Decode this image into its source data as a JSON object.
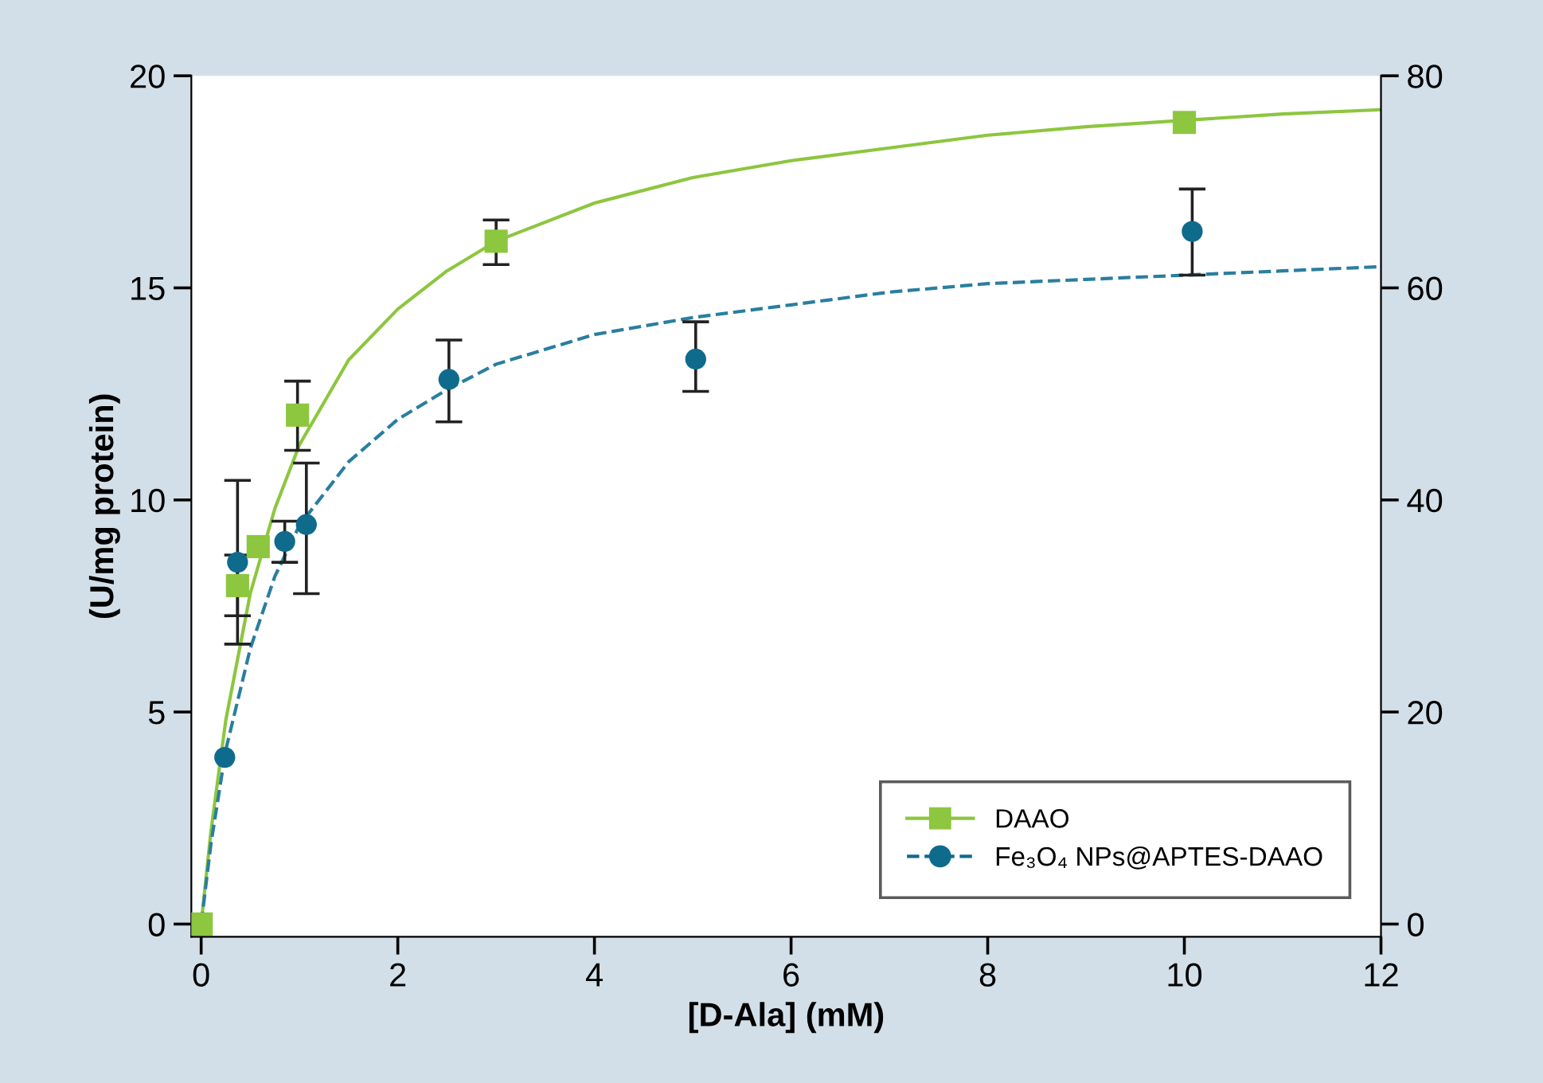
{
  "chart_data": {
    "type": "scatter",
    "xlabel": "[D-Ala] (mM)",
    "ylabel": "(U/mg protein)",
    "xlim": [
      -0.1,
      12
    ],
    "xticks": [
      0,
      2,
      4,
      6,
      8,
      10,
      12
    ],
    "ylim": [
      -0.3,
      20
    ],
    "yticks": [
      0,
      5,
      10,
      15,
      20
    ],
    "y2lim": [
      -1.2,
      80
    ],
    "y2ticks": [
      0,
      20,
      40,
      60,
      80
    ],
    "grid": false,
    "legend": "bottom right",
    "series": [
      {
        "name": "DAAO",
        "marker": "square",
        "color": "#8dc63f",
        "x": [
          0,
          0.37,
          0.58,
          0.98,
          3.0,
          10.0
        ],
        "values": [
          0,
          7.98,
          8.9,
          12.0,
          16.1,
          18.9
        ],
        "errors": [
          null,
          [
            7.27,
            8.7
          ],
          null,
          [
            11.17,
            12.8
          ],
          [
            15.55,
            16.6
          ],
          null
        ]
      },
      {
        "type": "line",
        "line_style": "solid",
        "color": "#8dc63f",
        "x": [
          0,
          0.1,
          0.25,
          0.5,
          0.75,
          1,
          1.5,
          2,
          2.5,
          3,
          4,
          5,
          6,
          7,
          8,
          9,
          10,
          11,
          12
        ],
        "values": [
          0,
          2.2,
          4.8,
          7.8,
          9.8,
          11.3,
          13.3,
          14.5,
          15.4,
          16.1,
          17.0,
          17.6,
          18.0,
          18.3,
          18.6,
          18.8,
          18.95,
          19.1,
          19.2
        ]
      },
      {
        "name": "Fe₃O₄ NPs@APTES-DAAO",
        "marker": "circle",
        "color": "#0f6b8c",
        "x": [
          0.24,
          0.37,
          0.85,
          1.07,
          2.52,
          5.03,
          10.08
        ],
        "values": [
          3.93,
          8.53,
          9.02,
          9.42,
          12.84,
          13.32,
          16.33
        ],
        "errors": [
          null,
          [
            6.6,
            10.46
          ],
          [
            8.53,
            9.5
          ],
          [
            7.79,
            10.87
          ],
          [
            11.84,
            13.77
          ],
          [
            12.56,
            14.2
          ],
          [
            15.3,
            17.33
          ]
        ]
      },
      {
        "type": "line",
        "line_style": "dashed",
        "color": "#2a7ea0",
        "x": [
          0,
          0.1,
          0.25,
          0.5,
          0.75,
          1,
          1.5,
          2,
          2.5,
          3,
          4,
          5,
          6,
          7,
          8,
          9,
          10,
          11,
          12
        ],
        "values": [
          0,
          1.9,
          4.1,
          6.5,
          8.2,
          9.4,
          10.9,
          11.9,
          12.6,
          13.2,
          13.9,
          14.3,
          14.6,
          14.9,
          15.1,
          15.2,
          15.3,
          15.4,
          15.5
        ]
      }
    ]
  }
}
